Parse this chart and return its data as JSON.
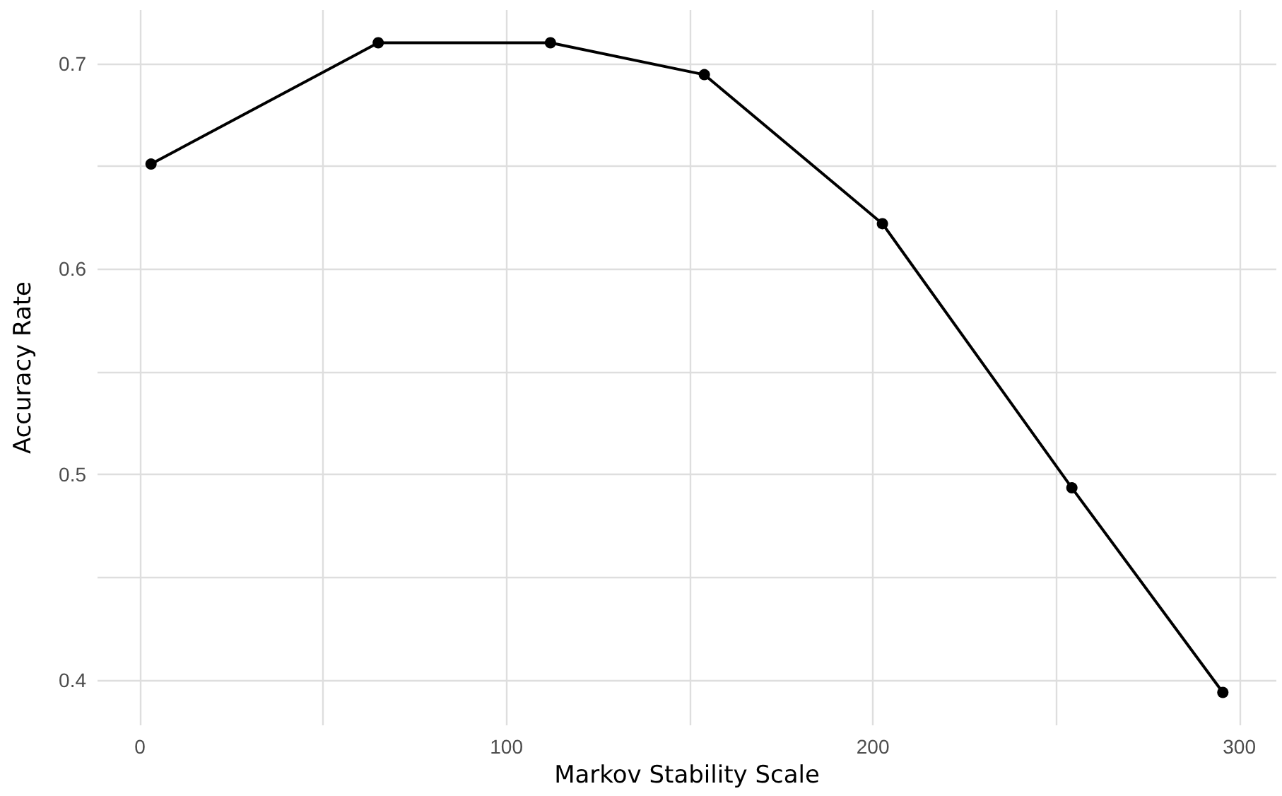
{
  "chart_data": {
    "type": "line",
    "xlabel": "Markov Stability Scale",
    "ylabel": "Accuracy Rate",
    "x": [
      3,
      65,
      112,
      154,
      202.6,
      254.3,
      295.5
    ],
    "series": [
      {
        "color": "#000000",
        "values": [
          0.651,
          0.71,
          0.71,
          0.6945,
          0.622,
          0.4935,
          0.394
        ]
      }
    ],
    "xlim": [
      -11.6,
      310.1
    ],
    "ylim": [
      0.378,
      0.726
    ],
    "xticks": [
      0,
      {
        "value": 50,
        "label": null
      },
      100,
      {
        "value": 150,
        "label": null
      },
      200,
      {
        "value": 250,
        "label": null
      },
      300
    ],
    "yticks": [
      0.4,
      {
        "value": 0.45,
        "label": null
      },
      0.5,
      {
        "value": 0.55,
        "label": null
      },
      0.6,
      {
        "value": 0.65,
        "label": null
      },
      0.7
    ],
    "grid": true,
    "marker": "circle",
    "line_style": "solid"
  }
}
